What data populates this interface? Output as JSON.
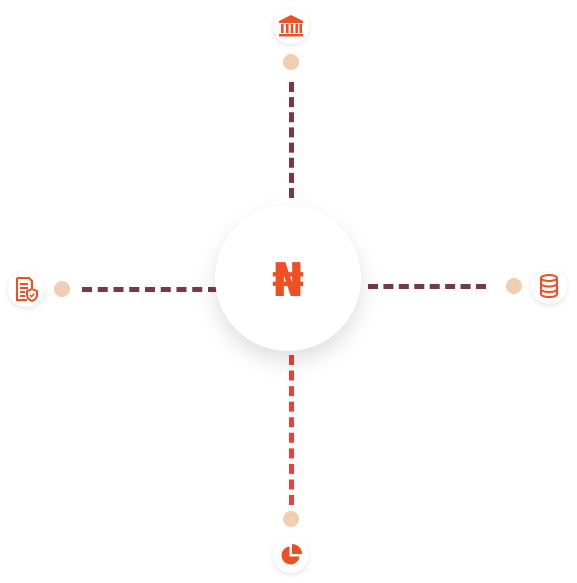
{
  "hub": {
    "symbol": "₦",
    "icon": "naira-currency-icon"
  },
  "nodes": [
    {
      "id": "top",
      "icon": "bank-building-icon"
    },
    {
      "id": "left",
      "icon": "secure-document-icon"
    },
    {
      "id": "right",
      "icon": "database-icon"
    },
    {
      "id": "bottom",
      "icon": "pie-chart-icon"
    }
  ],
  "colors": {
    "accent": "#f04e23",
    "connector_dark": "#7a3744",
    "connector_red": "#e8413b",
    "dot": "#f0cfb1"
  }
}
